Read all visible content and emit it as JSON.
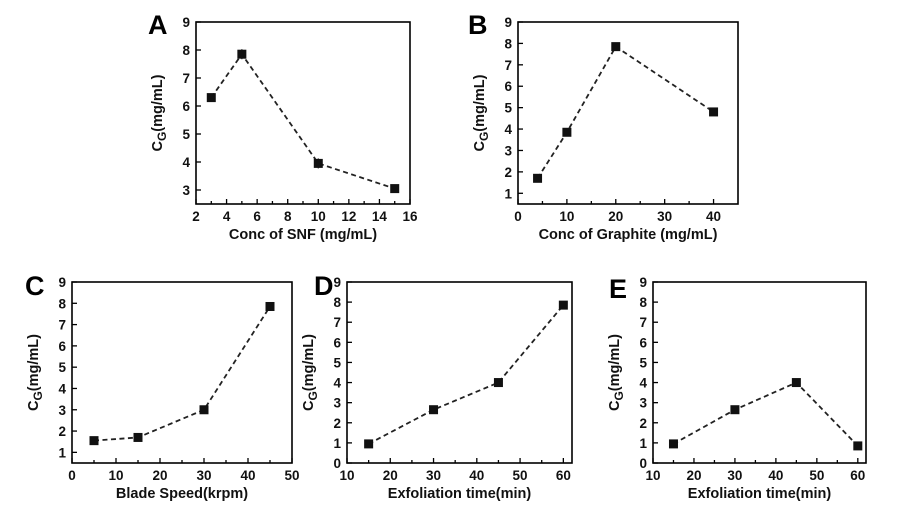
{
  "chart_data": [
    {
      "type": "line",
      "panel": "A",
      "xlabel": "Conc of SNF (mg/mL)",
      "ylabel": "C",
      "ylabel_sub": "G",
      "ylabel_rest": "(mg/mL)",
      "xlim": [
        2,
        16
      ],
      "ylim": [
        2.5,
        9
      ],
      "xticks": [
        2,
        4,
        6,
        8,
        10,
        12,
        14,
        16
      ],
      "yticks": [
        3,
        4,
        5,
        6,
        7,
        8,
        9
      ],
      "x": [
        3,
        5,
        10,
        15
      ],
      "y": [
        6.3,
        7.85,
        3.95,
        3.05
      ],
      "yerr": [
        0.05,
        0.18,
        0.18,
        0.05
      ]
    },
    {
      "type": "line",
      "panel": "B",
      "xlabel": "Conc of Graphite (mg/mL)",
      "ylabel": "C",
      "ylabel_sub": "G",
      "ylabel_rest": "(mg/mL)",
      "xlim": [
        0,
        45
      ],
      "ylim": [
        0.5,
        9
      ],
      "xticks": [
        0,
        10,
        20,
        30,
        40
      ],
      "yticks": [
        1,
        2,
        3,
        4,
        5,
        6,
        7,
        8,
        9
      ],
      "x": [
        4,
        10,
        20,
        40
      ],
      "y": [
        1.7,
        3.85,
        7.85,
        4.8
      ],
      "yerr": [
        0.05,
        0.05,
        0.15,
        0.05
      ]
    },
    {
      "type": "line",
      "panel": "C",
      "xlabel": "Blade Speed(krpm)",
      "ylabel": "C",
      "ylabel_sub": "G",
      "ylabel_rest": "(mg/mL)",
      "xlim": [
        0,
        50
      ],
      "ylim": [
        0.5,
        9
      ],
      "xticks": [
        0,
        10,
        20,
        30,
        40,
        50
      ],
      "yticks": [
        1,
        2,
        3,
        4,
        5,
        6,
        7,
        8,
        9
      ],
      "x": [
        5,
        15,
        30,
        45
      ],
      "y": [
        1.55,
        1.7,
        3.0,
        7.85
      ],
      "yerr": [
        0.05,
        0.05,
        0.05,
        0.2
      ]
    },
    {
      "type": "line",
      "panel": "D",
      "xlabel": "Exfoliation time(min)",
      "ylabel": "C",
      "ylabel_sub": "G",
      "ylabel_rest": "(mg/mL)",
      "xlim": [
        10,
        62
      ],
      "ylim": [
        0,
        9
      ],
      "xticks": [
        10,
        20,
        30,
        40,
        50,
        60
      ],
      "yticks": [
        0,
        1,
        2,
        3,
        4,
        5,
        6,
        7,
        8,
        9
      ],
      "x": [
        15,
        30,
        45,
        60
      ],
      "y": [
        0.95,
        2.65,
        4.0,
        7.85
      ],
      "yerr": [
        0.05,
        0.05,
        0.05,
        0.18
      ]
    },
    {
      "type": "line",
      "panel": "E",
      "xlabel": "Exfoliation time(min)",
      "ylabel": "C",
      "ylabel_sub": "G",
      "ylabel_rest": "(mg/mL)",
      "xlim": [
        10,
        62
      ],
      "ylim": [
        0,
        9
      ],
      "xticks": [
        10,
        20,
        30,
        40,
        50,
        60
      ],
      "yticks": [
        0,
        1,
        2,
        3,
        4,
        5,
        6,
        7,
        8,
        9
      ],
      "x": [
        15,
        30,
        45,
        60
      ],
      "y": [
        0.95,
        2.65,
        4.0,
        0.85
      ],
      "yerr": [
        0.05,
        0.05,
        0.05,
        0.05
      ]
    }
  ]
}
